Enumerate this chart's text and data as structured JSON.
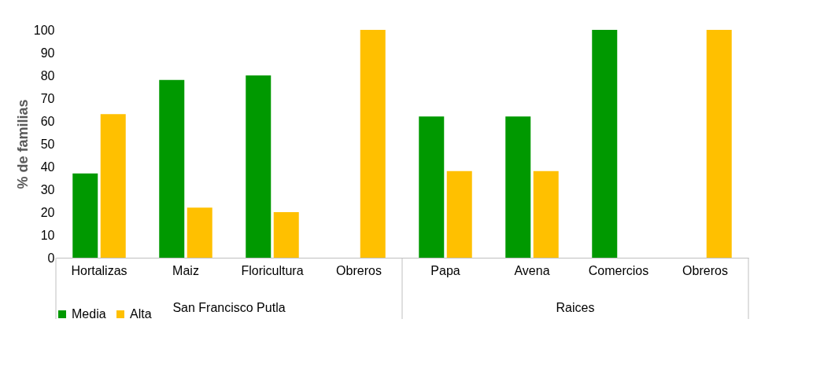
{
  "chart_data": {
    "type": "bar",
    "ylabel": "% de familias",
    "categories": [
      "Hortalizas",
      "Maiz",
      "Floricultura",
      "Obreros",
      "Papa",
      "Avena",
      "Comercios",
      "Obreros"
    ],
    "series": [
      {
        "name": "Media",
        "color": "#009900",
        "values": [
          37,
          78,
          80,
          null,
          62,
          62,
          100,
          null
        ]
      },
      {
        "name": "Alta",
        "color": "#ffc000",
        "values": [
          63,
          22,
          20,
          100,
          38,
          38,
          null,
          100
        ]
      }
    ],
    "ylim": [
      0,
      100
    ],
    "yticks": [
      0,
      10,
      20,
      30,
      40,
      50,
      60,
      70,
      80,
      90,
      100
    ],
    "grid": false,
    "legend": "bottom",
    "annotations": [
      "San Francisco Putla",
      "Raices"
    ]
  }
}
